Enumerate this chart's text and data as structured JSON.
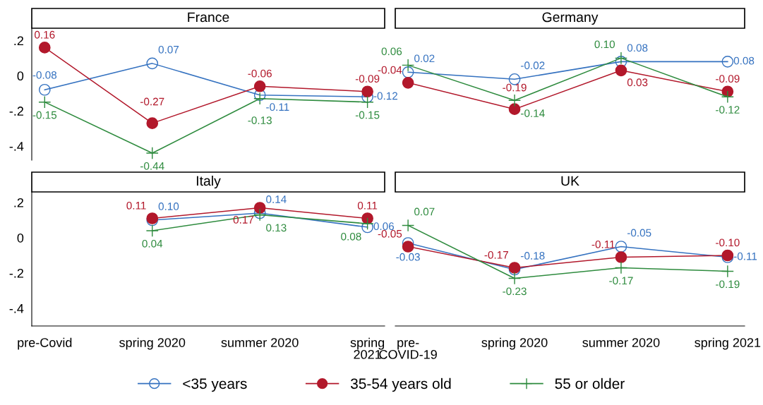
{
  "chart_data": [
    {
      "type": "line",
      "title": "France",
      "categories": [
        null,
        null,
        null,
        null
      ],
      "ylim": [
        -0.48,
        0.27
      ],
      "yticks": [
        {
          "value": 0.2,
          "label": ".2"
        },
        0,
        {
          "value": -0.2,
          "label": "-.2"
        },
        {
          "value": -0.4,
          "label": "-.4"
        }
      ],
      "tick_labels": "y",
      "grid": false,
      "legend": "bottom",
      "series": [
        {
          "name": "<35 years",
          "color": "#3572c0",
          "marker": "circle",
          "values": [
            -0.08,
            0.07,
            -0.11,
            -0.12
          ],
          "value_labels": [
            "-0.08",
            "0.07",
            "-0.11",
            "-0.12"
          ]
        },
        {
          "name": "35-54 years old",
          "color": "#b2182b",
          "marker": "circle",
          "values": [
            0.16,
            -0.27,
            -0.06,
            -0.09
          ],
          "value_labels": [
            "0.16",
            "-0.27",
            "-0.06",
            "-0.09"
          ]
        },
        {
          "name": "55 or older",
          "color": "#2e8b3e",
          "marker": "cross",
          "values": [
            -0.15,
            -0.44,
            -0.13,
            -0.15
          ],
          "value_labels": [
            "-0.15",
            "-0.44",
            "-0.13",
            "-0.15"
          ]
        }
      ]
    },
    {
      "type": "line",
      "title": "Germany",
      "categories": [
        null,
        null,
        null,
        null
      ],
      "tick_labels": false,
      "grid": false,
      "series": [
        {
          "color": "#3572c0",
          "marker": "circle",
          "values": [
            0.02,
            -0.02,
            0.08,
            0.08
          ],
          "value_labels": [
            "0.02",
            "-0.02",
            "0.08",
            "0.08"
          ]
        },
        {
          "color": "#b2182b",
          "marker": "circle",
          "values": [
            -0.04,
            -0.19,
            0.03,
            -0.09
          ],
          "value_labels": [
            "-0.04",
            "-0.19",
            "0.03",
            "-0.09"
          ]
        },
        {
          "color": "#2e8b3e",
          "marker": "cross",
          "values": [
            0.06,
            -0.14,
            0.1,
            -0.12
          ],
          "value_labels": [
            "0.06",
            "-0.14",
            "0.10",
            "-0.12"
          ]
        }
      ]
    },
    {
      "type": "line",
      "title": "Italy",
      "categories": [
        "pre-Covid",
        "spring 2020",
        "summer 2020",
        "spring\n2021"
      ],
      "ylim": [
        -0.5,
        0.26
      ],
      "yticks": [
        {
          "value": 0.2,
          "label": ".2"
        },
        0,
        {
          "value": -0.2,
          "label": "-.2"
        },
        {
          "value": -0.4,
          "label": "-.4"
        }
      ],
      "grid": false,
      "series": [
        {
          "color": "#3572c0",
          "marker": "circle",
          "values": [
            null,
            0.1,
            0.14,
            0.06
          ],
          "value_labels": [
            null,
            "0.10",
            "0.14",
            "0.06"
          ]
        },
        {
          "color": "#b2182b",
          "marker": "circle",
          "values": [
            null,
            0.11,
            0.17,
            0.11
          ],
          "value_labels": [
            null,
            "0.11",
            "0.17",
            "0.11"
          ]
        },
        {
          "color": "#2e8b3e",
          "marker": "cross",
          "values": [
            null,
            0.04,
            0.13,
            0.08
          ],
          "value_labels": [
            null,
            "0.04",
            "0.13",
            "0.08"
          ]
        }
      ]
    },
    {
      "type": "line",
      "title": "UK",
      "categories": [
        "pre-\nCOVID-19",
        "spring 2020",
        "summer 2020",
        "spring 2021"
      ],
      "tick_labels": "x",
      "grid": false,
      "series": [
        {
          "color": "#3572c0",
          "marker": "circle",
          "values": [
            -0.03,
            -0.18,
            -0.05,
            -0.11
          ],
          "value_labels": [
            "-0.03",
            "-0.18",
            "-0.05",
            "-0.11"
          ]
        },
        {
          "color": "#b2182b",
          "marker": "circle",
          "values": [
            -0.05,
            -0.17,
            -0.11,
            -0.1
          ],
          "value_labels": [
            "-0.05",
            "-0.17",
            "-0.11",
            "-0.10"
          ]
        },
        {
          "color": "#2e8b3e",
          "marker": "cross",
          "values": [
            0.07,
            -0.23,
            -0.17,
            -0.19
          ],
          "value_labels": [
            "0.07",
            "-0.23",
            "-0.17",
            "-0.19"
          ]
        }
      ]
    }
  ]
}
